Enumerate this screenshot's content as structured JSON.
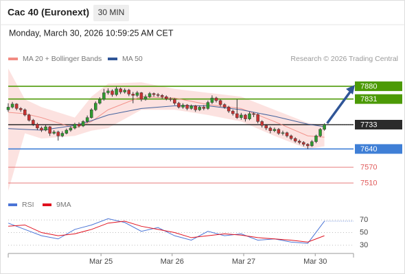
{
  "header": {
    "title": "Cac 40 (Euronext)",
    "timeframe": "30 MIN",
    "timestamp": "Monday, March 30, 2026 10:59:25 AM CET"
  },
  "chart_data": [
    {
      "type": "candlestick",
      "source": "Research © 2026 Trading Central",
      "xlim": [
        0,
        83
      ],
      "ylim": [
        7463,
        7961
      ],
      "up_color": "#2e9a2e",
      "down_color": "#c83232",
      "open": [
        7790,
        7800,
        7812,
        7795,
        7790,
        7770,
        7750,
        7735,
        7720,
        7712,
        7725,
        7700,
        7705,
        7690,
        7700,
        7712,
        7720,
        7735,
        7728,
        7745,
        7760,
        7790,
        7815,
        7830,
        7855,
        7862,
        7848,
        7870,
        7858,
        7865,
        7850,
        7845,
        7855,
        7830,
        7840,
        7852,
        7848,
        7845,
        7840,
        7832,
        7830,
        7815,
        7800,
        7808,
        7795,
        7805,
        7790,
        7800,
        7795,
        7818,
        7835,
        7825,
        7810,
        7800,
        7785,
        7775,
        7760,
        7770,
        7755,
        7775,
        7772,
        7745,
        7730,
        7720,
        7710,
        7715,
        7700,
        7702,
        7690,
        7680,
        7670,
        7665,
        7658,
        7652,
        7668,
        7690,
        7715
      ],
      "high": [
        7815,
        7820,
        7815,
        7800,
        7795,
        7775,
        7755,
        7740,
        7726,
        7732,
        7728,
        7712,
        7710,
        7708,
        7718,
        7726,
        7740,
        7742,
        7750,
        7768,
        7796,
        7822,
        7838,
        7870,
        7872,
        7868,
        7878,
        7875,
        7872,
        7870,
        7858,
        7862,
        7858,
        7848,
        7858,
        7856,
        7854,
        7850,
        7845,
        7838,
        7834,
        7820,
        7815,
        7812,
        7810,
        7808,
        7806,
        7808,
        7825,
        7845,
        7840,
        7830,
        7815,
        7805,
        7790,
        7830,
        7778,
        7774,
        7782,
        7780,
        7776,
        7750,
        7735,
        7726,
        7722,
        7720,
        7710,
        7706,
        7695,
        7685,
        7676,
        7670,
        7662,
        7674,
        7695,
        7720,
        7738
      ],
      "low": [
        7782,
        7795,
        7788,
        7782,
        7765,
        7745,
        7728,
        7712,
        7705,
        7708,
        7690,
        7695,
        7672,
        7685,
        7696,
        7706,
        7715,
        7722,
        7724,
        7740,
        7756,
        7785,
        7810,
        7825,
        7848,
        7840,
        7842,
        7850,
        7852,
        7842,
        7815,
        7838,
        7822,
        7825,
        7835,
        7840,
        7838,
        7832,
        7826,
        7822,
        7808,
        7795,
        7794,
        7788,
        7790,
        7782,
        7785,
        7788,
        7790,
        7812,
        7818,
        7802,
        7794,
        7778,
        7768,
        7755,
        7752,
        7745,
        7750,
        7762,
        7738,
        7722,
        7712,
        7700,
        7704,
        7694,
        7692,
        7684,
        7674,
        7664,
        7658,
        7650,
        7640,
        7648,
        7662,
        7685,
        7710
      ],
      "close": [
        7800,
        7812,
        7795,
        7790,
        7770,
        7750,
        7735,
        7720,
        7712,
        7725,
        7700,
        7705,
        7690,
        7700,
        7712,
        7720,
        7735,
        7728,
        7745,
        7760,
        7790,
        7815,
        7830,
        7855,
        7862,
        7848,
        7870,
        7858,
        7865,
        7850,
        7845,
        7855,
        7830,
        7840,
        7852,
        7848,
        7845,
        7840,
        7832,
        7830,
        7815,
        7800,
        7808,
        7795,
        7805,
        7790,
        7800,
        7795,
        7818,
        7835,
        7825,
        7810,
        7800,
        7785,
        7775,
        7760,
        7770,
        7755,
        7775,
        7772,
        7745,
        7730,
        7720,
        7710,
        7715,
        7700,
        7702,
        7690,
        7680,
        7670,
        7665,
        7658,
        7652,
        7668,
        7690,
        7715,
        7733
      ],
      "series": [
        {
          "name": "MA 20 + Bollinger Bands",
          "color": "#f28b82",
          "x": [
            0,
            4,
            8,
            16,
            20,
            24,
            32,
            40,
            48,
            56,
            64,
            72,
            76
          ],
          "values": [
            7780,
            7775,
            7760,
            7720,
            7745,
            7790,
            7840,
            7835,
            7810,
            7795,
            7745,
            7690,
            7685
          ],
          "upper": [
            7948,
            7830,
            7800,
            7760,
            7840,
            7890,
            7895,
            7870,
            7855,
            7840,
            7790,
            7740,
            7730
          ],
          "lower": [
            7480,
            7700,
            7680,
            7690,
            7710,
            7720,
            7790,
            7790,
            7770,
            7745,
            7690,
            7640,
            7650
          ]
        },
        {
          "name": "MA 50",
          "color": "#2f5597",
          "x": [
            0,
            4,
            8,
            16,
            20,
            24,
            32,
            40,
            48,
            56,
            64,
            72,
            76
          ],
          "values": [
            7718,
            7715,
            7712,
            7730,
            7748,
            7770,
            7795,
            7805,
            7805,
            7790,
            7765,
            7735,
            7725
          ]
        }
      ],
      "levels": [
        {
          "value": 7880,
          "color": "#4c9a06",
          "boxed": true
        },
        {
          "value": 7831,
          "color": "#4c9a06",
          "boxed": true
        },
        {
          "value": 7733,
          "color": "#2b2b2b",
          "boxed": true
        },
        {
          "value": 7640,
          "color": "#3f7fd6",
          "boxed": true
        },
        {
          "value": 7570,
          "color": "#e05a5a",
          "boxed": false
        },
        {
          "value": 7510,
          "color": "#e05a5a",
          "boxed": false
        }
      ]
    },
    {
      "type": "line",
      "xlim": [
        0,
        83
      ],
      "xticks": [
        {
          "value": 22.3,
          "label": "Mar 25"
        },
        {
          "value": 39.4,
          "label": "Mar 26"
        },
        {
          "value": 56.6,
          "label": "Mar 27"
        },
        {
          "value": 73.8,
          "label": "Mar 30"
        }
      ],
      "ylim": [
        17,
        82
      ],
      "yticks": [
        70,
        50,
        30
      ],
      "series": [
        {
          "name": "RSI",
          "color": "#4a74d6",
          "x": [
            0,
            4,
            8,
            12,
            16,
            20,
            24,
            28,
            32,
            36,
            40,
            44,
            48,
            52,
            56,
            60,
            64,
            68,
            72,
            76
          ],
          "values": [
            65,
            55,
            45,
            40,
            55,
            62,
            72,
            66,
            52,
            58,
            45,
            38,
            52,
            45,
            48,
            38,
            40,
            35,
            33,
            68
          ]
        },
        {
          "name": "9MA",
          "color": "#e0101e",
          "x": [
            0,
            4,
            8,
            12,
            16,
            20,
            24,
            28,
            32,
            36,
            40,
            44,
            48,
            52,
            56,
            60,
            64,
            68,
            72,
            76
          ],
          "values": [
            60,
            62,
            50,
            45,
            48,
            55,
            65,
            68,
            60,
            55,
            50,
            42,
            45,
            48,
            46,
            42,
            40,
            38,
            35,
            45
          ]
        }
      ]
    }
  ]
}
